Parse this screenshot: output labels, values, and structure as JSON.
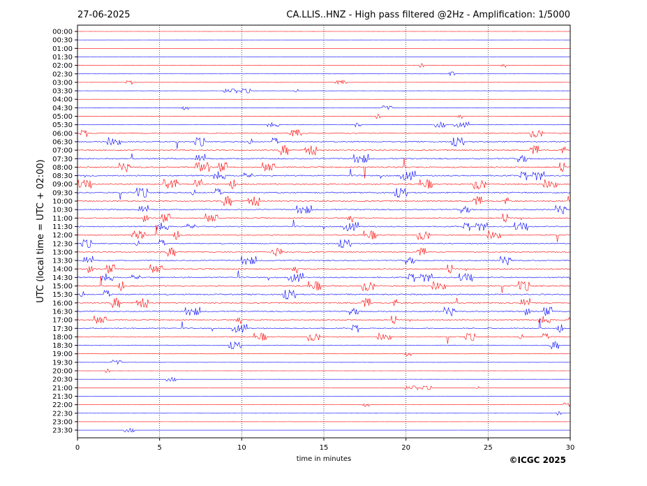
{
  "chart_data": {
    "type": "line",
    "title": "CA.LLIS..HNZ - High pass filtered @2Hz - Amplification: 1/5000",
    "date": "27-06-2025",
    "xlabel": "time in minutes",
    "ylabel": "UTC (local time = UTC + 02:00)",
    "xlim": [
      0,
      30
    ],
    "x_ticks": [
      0,
      5,
      10,
      15,
      20,
      25,
      30
    ],
    "x_tick_labels": [
      "0",
      "5",
      "10",
      "15",
      "20",
      "25",
      "30"
    ],
    "row_labels": [
      "00:00",
      "00:30",
      "01:00",
      "01:30",
      "02:00",
      "02:30",
      "03:00",
      "03:30",
      "04:00",
      "04:30",
      "05:00",
      "05:30",
      "06:00",
      "06:30",
      "07:00",
      "07:30",
      "08:00",
      "08:30",
      "09:00",
      "09:30",
      "10:00",
      "10:30",
      "11:00",
      "11:30",
      "12:00",
      "12:30",
      "13:00",
      "13:30",
      "14:00",
      "14:30",
      "15:00",
      "15:30",
      "16:00",
      "16:30",
      "17:00",
      "17:30",
      "18:00",
      "18:30",
      "19:00",
      "19:30",
      "20:00",
      "20:30",
      "21:00",
      "21:30",
      "22:00",
      "22:30",
      "23:00",
      "23:30"
    ],
    "trace_colors": [
      "#ff0000",
      "#0000ff"
    ],
    "row_activity": [
      0.05,
      0.05,
      0.05,
      0.05,
      0.1,
      0.1,
      0.1,
      0.15,
      0.1,
      0.1,
      0.2,
      0.3,
      0.7,
      0.9,
      1.0,
      1.0,
      1.0,
      1.0,
      1.0,
      1.0,
      1.0,
      0.9,
      0.9,
      0.9,
      0.9,
      0.8,
      0.8,
      0.9,
      0.9,
      0.9,
      1.0,
      1.0,
      1.0,
      0.9,
      0.8,
      0.8,
      0.7,
      0.6,
      0.2,
      0.15,
      0.05,
      0.05,
      0.05,
      0.05,
      0.05,
      0.05,
      0.05,
      0.05
    ],
    "vertical_grid": true,
    "grid_style": "dotted"
  },
  "footer": {
    "copyright": "©ICGC 2025"
  }
}
